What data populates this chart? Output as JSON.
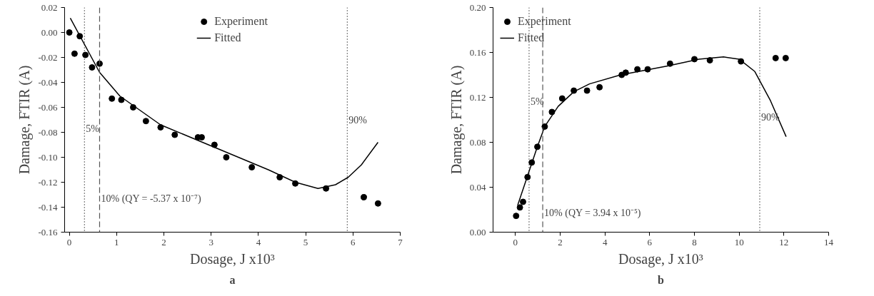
{
  "chart_data": [
    {
      "type": "scatter",
      "xlabel": "Dosage, J x10³",
      "ylabel": "Damage, FTIR (A)",
      "xlim": [
        -0.1,
        7
      ],
      "ylim": [
        -0.16,
        0.02
      ],
      "xticks": [
        0,
        1,
        2,
        3,
        4,
        5,
        6,
        7
      ],
      "yticks": [
        {
          "value": -0.16,
          "label": "-0.16"
        },
        {
          "value": -0.14,
          "label": "-0.14"
        },
        {
          "value": -0.12,
          "label": "-0.12"
        },
        {
          "value": -0.1,
          "label": "-0.10"
        },
        {
          "value": -0.08,
          "label": "-0.08"
        },
        {
          "value": -0.06,
          "label": "-0.06"
        },
        {
          "value": -0.04,
          "label": "-0.04"
        },
        {
          "value": -0.02,
          "label": "-0.02"
        },
        {
          "value": 0,
          "label": "0.00"
        },
        {
          "value": 0.02,
          "label": "0.02"
        }
      ],
      "grid": false,
      "legend": "top",
      "series": [
        {
          "name": "Experiment",
          "marker": "circle",
          "color": "#000000",
          "x": [
            0,
            0.11,
            0.22,
            0.34,
            0.48,
            0.64,
            0.9,
            1.1,
            1.35,
            1.62,
            1.93,
            2.23,
            2.72,
            2.8,
            3.07,
            3.32,
            3.86,
            4.45,
            4.78,
            5.43,
            6.23,
            6.53
          ],
          "values": [
            0.0,
            -0.017,
            -0.003,
            -0.018,
            -0.028,
            -0.025,
            -0.053,
            -0.054,
            -0.06,
            -0.071,
            -0.076,
            -0.082,
            -0.084,
            -0.084,
            -0.09,
            -0.1,
            -0.108,
            -0.116,
            -0.121,
            -0.125,
            -0.132,
            -0.137
          ]
        },
        {
          "name": "Fitted",
          "type": "line",
          "color": "#000000",
          "x": [
            0.02,
            0.64,
            1.07,
            1.93,
            3.07,
            4.21,
            4.78,
            5.26,
            5.63,
            5.9,
            6.18,
            6.53
          ],
          "values": [
            0.0115,
            -0.032,
            -0.051,
            -0.074,
            -0.092,
            -0.11,
            -0.12,
            -0.125,
            -0.122,
            -0.116,
            -0.106,
            -0.088
          ]
        }
      ],
      "ref_lines": [
        {
          "axis": "x",
          "value": 0.32,
          "line_style": "dotted",
          "color": "#000000"
        },
        {
          "axis": "x",
          "value": 0.64,
          "line_style": "dashed",
          "color": "#555555"
        },
        {
          "axis": "x",
          "value": 5.88,
          "line_style": "dotted",
          "color": "#000000"
        }
      ],
      "annotations": [
        {
          "text": "5%",
          "x": 0.32,
          "y": -0.077
        },
        {
          "text": "10% (QY = -5.37 x 10⁻⁷)",
          "x": 0.64,
          "y": -0.133
        },
        {
          "text": "90%",
          "x": 5.88,
          "y": -0.07
        },
        "a"
      ]
    },
    {
      "type": "scatter",
      "xlabel": "Dosage, J x10³",
      "ylabel": "Damage, FTIR (A)",
      "xlim": [
        -1,
        14
      ],
      "ylim": [
        0,
        0.2
      ],
      "xticks": [
        0,
        2,
        4,
        6,
        8,
        10,
        12,
        14
      ],
      "yticks": [
        {
          "value": 0,
          "label": "0.00"
        },
        {
          "value": 0.04,
          "label": "0.04"
        },
        {
          "value": 0.08,
          "label": "0.08"
        },
        {
          "value": 0.12,
          "label": "0.12"
        },
        {
          "value": 0.16,
          "label": "0.16"
        },
        {
          "value": 0.2,
          "label": "0.20"
        }
      ],
      "grid": false,
      "legend": "top left",
      "series": [
        {
          "name": "Experiment",
          "marker": "circle",
          "color": "#000000",
          "x": [
            0.03,
            0.2,
            0.34,
            0.54,
            0.73,
            0.98,
            1.31,
            1.63,
            2.09,
            2.61,
            3.2,
            3.76,
            4.75,
            4.93,
            5.45,
            5.91,
            6.91,
            8.0,
            8.69,
            10.08,
            11.63,
            12.08
          ],
          "values": [
            0.0145,
            0.022,
            0.027,
            0.049,
            0.062,
            0.076,
            0.094,
            0.107,
            0.119,
            0.126,
            0.126,
            0.129,
            0.14,
            0.142,
            0.145,
            0.145,
            0.15,
            0.154,
            0.153,
            0.152,
            0.155,
            0.155
          ]
        },
        {
          "name": "Fitted",
          "type": "line",
          "color": "#000000",
          "x": [
            0.1,
            0.54,
            0.98,
            1.31,
            1.91,
            2.61,
            3.31,
            4.7,
            6.8,
            8.2,
            9.3,
            10.0,
            10.7,
            11.4,
            12.1
          ],
          "values": [
            0.024,
            0.05,
            0.076,
            0.094,
            0.112,
            0.125,
            0.132,
            0.14,
            0.148,
            0.154,
            0.156,
            0.154,
            0.143,
            0.117,
            0.085
          ]
        }
      ],
      "ref_lines": [
        {
          "axis": "x",
          "value": 0.61,
          "line_style": "dotted",
          "color": "#000000"
        },
        {
          "axis": "x",
          "value": 1.22,
          "line_style": "dashed",
          "color": "#555555"
        },
        {
          "axis": "x",
          "value": 10.92,
          "line_style": "dotted",
          "color": "#000000"
        }
      ],
      "annotations": [
        {
          "text": "5%",
          "x": 0.61,
          "y": 0.116
        },
        {
          "text": "10% (QY = 3.94 x 10⁻⁵)",
          "x": 1.22,
          "y": 0.017
        },
        {
          "text": "90%",
          "x": 10.92,
          "y": 0.102
        },
        "b"
      ]
    }
  ]
}
